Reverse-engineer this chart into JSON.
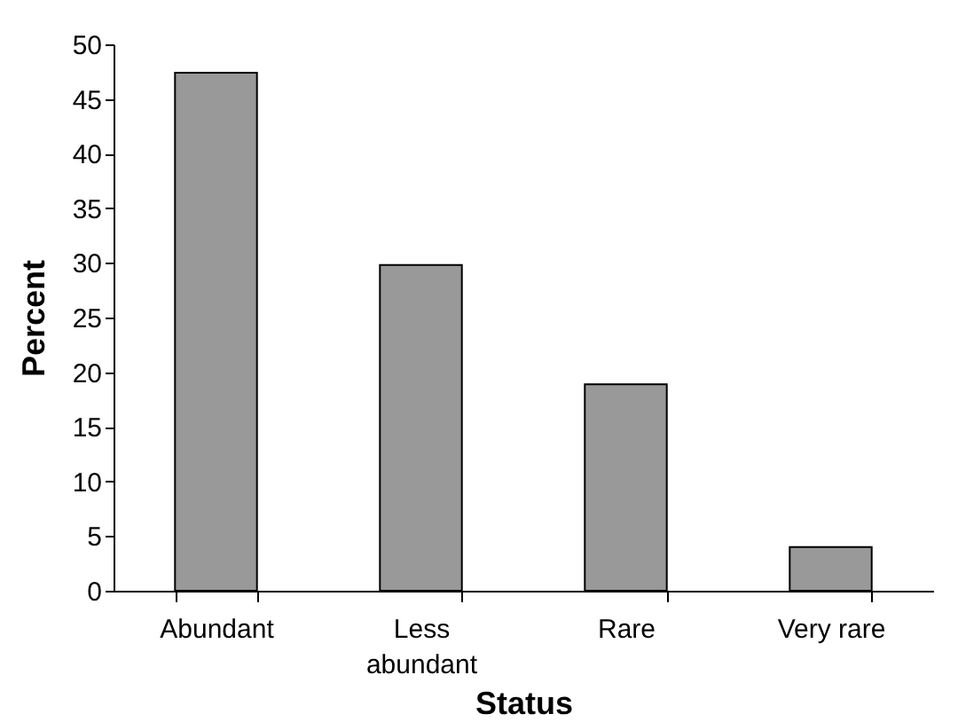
{
  "chart_data": {
    "type": "bar",
    "xlabel": "Status",
    "ylabel": "Percent",
    "categories": [
      "Abundant",
      "Less abundant",
      "Rare",
      "Very rare"
    ],
    "values": [
      47.4,
      29.8,
      18.9,
      4.0
    ],
    "color": "#999999",
    "ylim": [
      0,
      50
    ],
    "yticks": [
      0,
      5,
      10,
      15,
      20,
      25,
      30,
      35,
      40,
      45,
      50
    ],
    "grid": false
  }
}
